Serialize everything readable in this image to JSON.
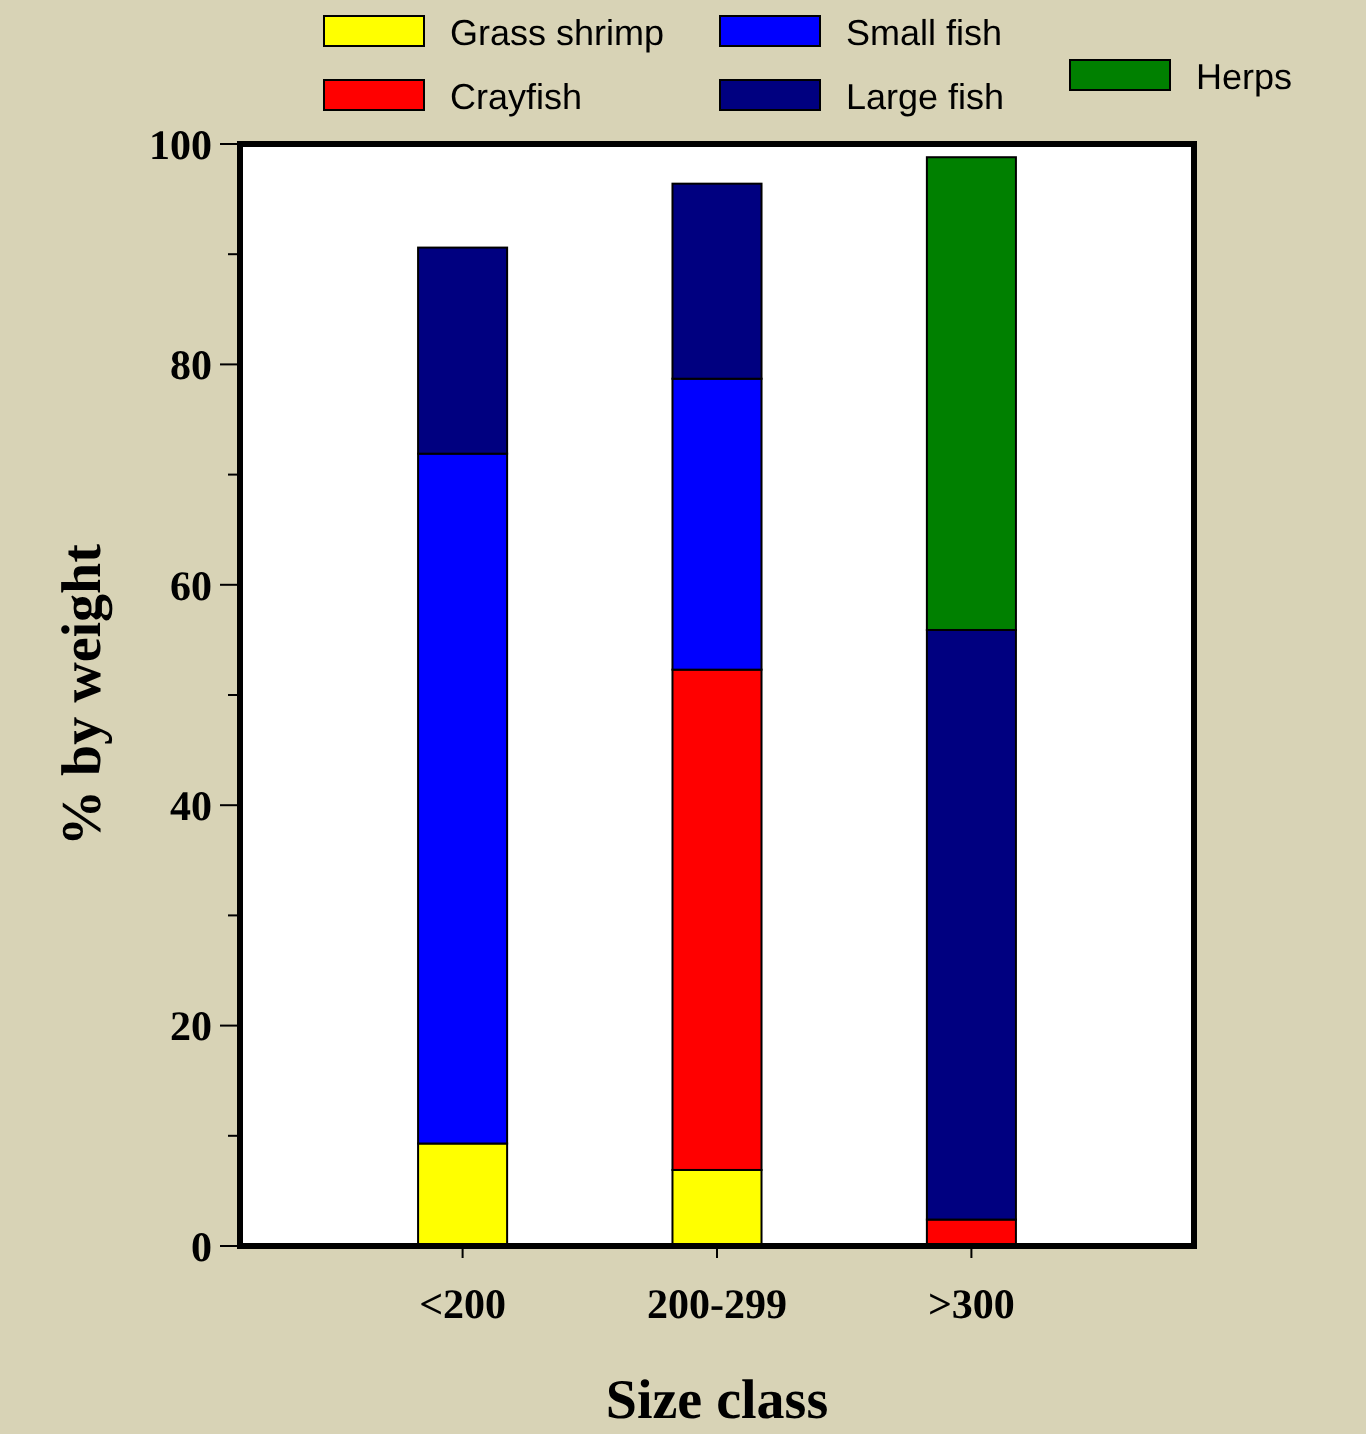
{
  "chart_data": {
    "type": "bar",
    "stacked": true,
    "xlabel": "Size class",
    "ylabel": "% by weight",
    "categories": [
      "<200",
      "200-299",
      ">300"
    ],
    "series": [
      {
        "name": "Grass shrimp",
        "color": "#ffff00",
        "values": [
          9.3,
          6.9,
          null
        ]
      },
      {
        "name": "Crayfish",
        "color": "#ff0000",
        "values": [
          null,
          45.4,
          2.4
        ]
      },
      {
        "name": "Small fish",
        "color": "#0000ff",
        "values": [
          62.6,
          26.4,
          null
        ]
      },
      {
        "name": "Large fish",
        "color": "#000080",
        "values": [
          18.7,
          17.7,
          53.5
        ]
      },
      {
        "name": "Herps",
        "color": "#008000",
        "values": [
          null,
          null,
          42.9
        ]
      }
    ],
    "ylim": [
      0,
      100
    ],
    "yticks": [
      0,
      {
        "value": 10,
        "label": null
      },
      20,
      {
        "value": 30,
        "label": null
      },
      40,
      {
        "value": 50,
        "label": null
      },
      60,
      {
        "value": 70,
        "label": null
      },
      80,
      {
        "value": 90,
        "label": null
      },
      100
    ],
    "legend": "top"
  }
}
